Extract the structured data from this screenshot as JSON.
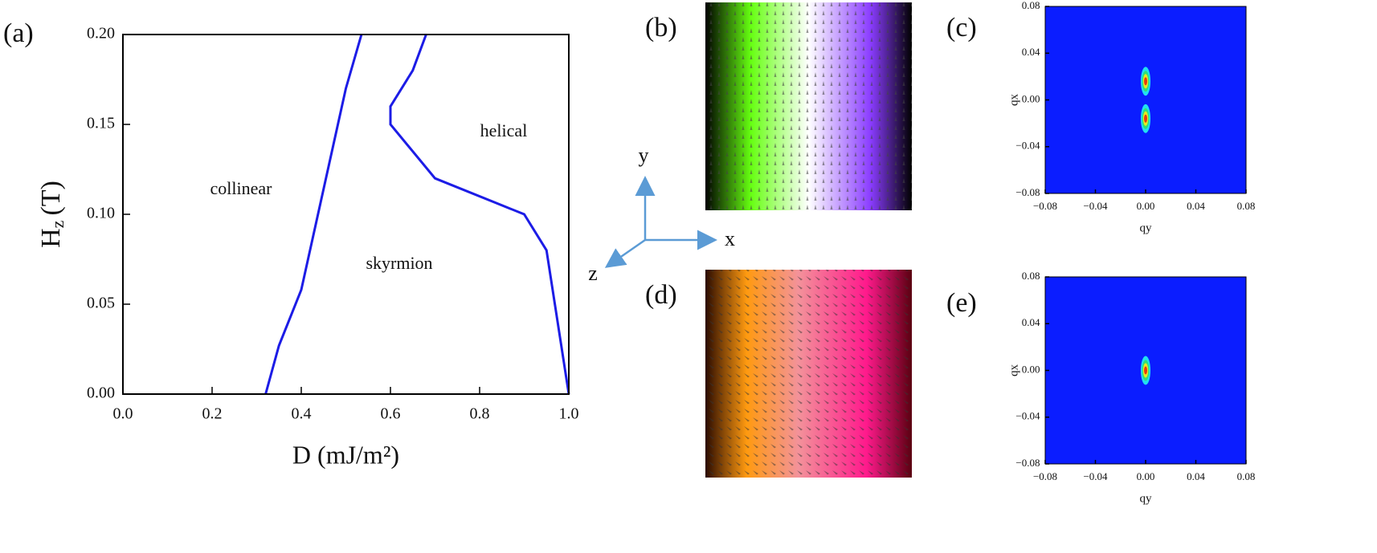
{
  "panel_labels": [
    "(a)",
    "(b)",
    "(c)",
    "(d)",
    "(e)"
  ],
  "triad": [
    "x",
    "y",
    "z"
  ],
  "chart_data": [
    {
      "type": "line",
      "xlabel": "D (mJ/m²)",
      "ylabel": {
        "main": "H",
        "sub": "z",
        "unit": "(T)"
      },
      "annotations": [
        "collinear",
        "skyrmion",
        "helical"
      ],
      "series": [
        {
          "color": "#1c1ce6",
          "x": [
            0.32,
            0.35,
            0.4,
            0.5,
            0.535
          ],
          "values": [
            0,
            0.027,
            0.058,
            0.17,
            0.2
          ]
        },
        {
          "color": "#1c1ce6",
          "x": [
            1.0,
            0.95,
            0.9,
            0.7,
            0.6,
            0.6,
            0.65,
            0.68
          ],
          "values": [
            0,
            0.08,
            0.1,
            0.12,
            0.15,
            0.16,
            0.18,
            0.2
          ]
        }
      ],
      "xlim": [
        0,
        1.0
      ],
      "ylim": [
        0,
        0.2
      ],
      "xticks": [
        {
          "value": 0,
          "label": "0.0"
        },
        0.2,
        0.4,
        0.6,
        0.8,
        {
          "value": 1.0,
          "label": "1.0"
        }
      ],
      "yticks": [
        {
          "value": 0,
          "label": "0.00"
        },
        0.05,
        {
          "value": 0.1,
          "label": "0.10"
        },
        0.15,
        {
          "value": 0.2,
          "label": "0.20"
        }
      ]
    },
    {
      "type": "contour",
      "xlabel": "qy",
      "ylabel": "qx",
      "x": [
        0,
        0
      ],
      "values": [
        0.016,
        -0.016
      ],
      "xlim": [
        -0.08,
        0.08
      ],
      "ylim": [
        -0.08,
        0.08
      ],
      "xticks": [
        {
          "value": -0.08,
          "label": "−0.08"
        },
        {
          "value": -0.04,
          "label": "−0.04"
        },
        {
          "value": 0,
          "label": "0.00"
        },
        0.04,
        0.08
      ],
      "yticks": [
        {
          "value": -0.08,
          "label": "−0.08"
        },
        {
          "value": -0.04,
          "label": "−0.04"
        },
        {
          "value": 0,
          "label": "0.00"
        },
        0.04,
        0.08
      ]
    },
    {
      "type": "contour",
      "xlabel": "qy",
      "ylabel": "qx",
      "x": [
        0
      ],
      "values": [
        0
      ],
      "xlim": [
        -0.08,
        0.08
      ],
      "ylim": [
        -0.08,
        0.08
      ],
      "xticks": [
        {
          "value": -0.08,
          "label": "−0.08"
        },
        {
          "value": -0.04,
          "label": "−0.04"
        },
        {
          "value": 0,
          "label": "0.00"
        },
        0.04,
        0.08
      ],
      "yticks": [
        {
          "value": -0.08,
          "label": "−0.08"
        },
        {
          "value": -0.04,
          "label": "−0.04"
        },
        {
          "value": 0,
          "label": "0.00"
        },
        0.04,
        0.08
      ]
    }
  ]
}
